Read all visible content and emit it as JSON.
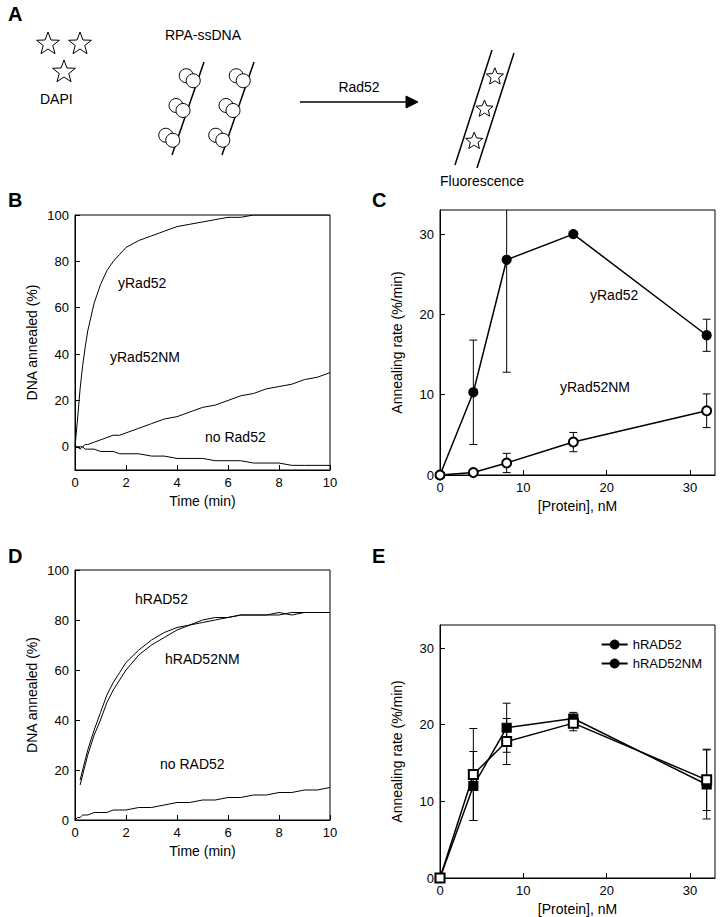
{
  "diagram": {
    "title": "A",
    "labels": {
      "dye": "DAPI",
      "substrate": "RPA-ssDNA",
      "protein": "Rad52",
      "product": "Fluorescence"
    }
  },
  "chart_data": [
    {
      "type": "line",
      "title": "B",
      "x_label": "Time (min)",
      "y_label": "DNA annealed (%)",
      "x": [
        0,
        0.1,
        0.2,
        0.3,
        0.4,
        0.5,
        0.75,
        1,
        1.25,
        1.5,
        1.75,
        2,
        2.5,
        3,
        3.5,
        4,
        4.5,
        5,
        5.5,
        6,
        6.5,
        7,
        7.5,
        8,
        8.5,
        9,
        9.5,
        10
      ],
      "series": [
        {
          "name": "yRad52",
          "color": "#000000",
          "marker": "none",
          "values": [
            0,
            12,
            25,
            35,
            43,
            50,
            62,
            70,
            76,
            80,
            83,
            86,
            89,
            91,
            93,
            95,
            96,
            97,
            98,
            99,
            99,
            100,
            100,
            100,
            100,
            100,
            100,
            100
          ]
        },
        {
          "name": "yRad52NM",
          "color": "#000000",
          "marker": "none",
          "values": [
            0,
            0,
            0,
            0,
            1,
            1,
            2,
            3,
            4,
            5,
            5,
            6,
            8,
            10,
            12,
            13,
            15,
            17,
            18,
            20,
            22,
            23,
            25,
            26,
            27,
            29,
            30,
            32
          ]
        },
        {
          "name": "no Rad52",
          "color": "#000000",
          "marker": "none",
          "values": [
            0,
            0,
            -1,
            0,
            -1,
            -1,
            -1,
            -2,
            -2,
            -2,
            -3,
            -3,
            -3,
            -4,
            -4,
            -5,
            -5,
            -5,
            -6,
            -6,
            -6,
            -7,
            -7,
            -7,
            -8,
            -8,
            -8,
            -8
          ]
        }
      ],
      "xlim": [
        0,
        10
      ],
      "xticks": [
        0,
        2,
        4,
        6,
        8,
        10
      ],
      "ylim": [
        -10,
        100
      ],
      "yticks": [
        0,
        20,
        40,
        60,
        80,
        100
      ],
      "grid": false
    },
    {
      "type": "line",
      "title": "C",
      "x_label": "[Protein], nM",
      "y_label": "Annealing rate (%/min)",
      "x": [
        0,
        4,
        8,
        16,
        32
      ],
      "series": [
        {
          "name": "yRad52",
          "color": "#000000",
          "marker": "circle",
          "values": [
            0,
            10.3,
            26.8,
            30,
            17.4
          ],
          "errors": [
            null,
            6.5,
            14,
            0.3,
            2
          ]
        },
        {
          "name": "yRad52NM",
          "color": "#000000",
          "marker": "circle-open",
          "values": [
            0,
            0.3,
            1.5,
            4.1,
            8
          ],
          "errors": [
            null,
            0.3,
            1.2,
            1.2,
            2.1
          ]
        }
      ],
      "xlim": [
        0,
        33
      ],
      "xticks": [
        0,
        10,
        20,
        30
      ],
      "ylim": [
        0,
        33
      ],
      "yticks": [
        0,
        10,
        20,
        30
      ],
      "grid": false
    },
    {
      "type": "line",
      "title": "D",
      "x_label": "Time (min)",
      "y_label": "DNA annealed (%)",
      "x": [
        0,
        0.1,
        0.2,
        0.3,
        0.4,
        0.5,
        0.75,
        1,
        1.25,
        1.5,
        1.75,
        2,
        2.5,
        3,
        3.5,
        4,
        4.5,
        5,
        5.5,
        6,
        6.5,
        7,
        7.5,
        8,
        8.5,
        9,
        9.5,
        10
      ],
      "series": [
        {
          "name": "hRAD52",
          "color": "#000000",
          "marker": "none",
          "values": [
            null,
            null,
            16,
            20,
            24,
            28,
            36,
            43,
            50,
            55,
            59,
            63,
            68,
            72,
            75,
            77,
            78,
            80,
            81,
            81,
            82,
            82,
            82,
            83,
            82,
            83,
            83,
            83
          ]
        },
        {
          "name": "hRAD52NM",
          "color": "#000000",
          "marker": "none",
          "values": [
            null,
            null,
            14,
            18,
            22,
            26,
            34,
            40,
            47,
            52,
            56,
            60,
            66,
            70,
            73,
            76,
            78,
            79,
            80,
            81,
            82,
            82,
            82,
            82,
            83,
            83,
            83,
            83
          ]
        },
        {
          "name": "no RAD52",
          "color": "#000000",
          "marker": "none",
          "values": [
            0,
            1,
            1,
            2,
            2,
            2,
            3,
            3,
            3,
            4,
            4,
            4,
            5,
            5,
            6,
            7,
            7,
            8,
            8,
            9,
            9,
            10,
            10,
            11,
            11,
            12,
            12,
            13
          ]
        }
      ],
      "xlim": [
        0,
        10
      ],
      "xticks": [
        0,
        2,
        4,
        6,
        8,
        10
      ],
      "ylim": [
        0,
        100
      ],
      "yticks": [
        0,
        20,
        40,
        60,
        80,
        100
      ],
      "grid": false
    },
    {
      "type": "line",
      "title": "E",
      "x_label": "[Protein], nM",
      "y_label": "Annealing rate (%/min)",
      "x": [
        0,
        4,
        8,
        16,
        32
      ],
      "series": [
        {
          "name": "hRAD52",
          "color": "#000000",
          "marker": "square",
          "values": [
            0,
            12,
            19.6,
            20.8,
            12.2
          ],
          "errors": [
            null,
            4.5,
            3.2,
            0.8,
            4.5
          ]
        },
        {
          "name": "hRAD52NM",
          "color": "#000000",
          "marker": "square-open",
          "values": [
            0,
            13.5,
            17.8,
            20.2,
            12.8
          ],
          "errors": [
            null,
            6,
            3,
            1,
            4
          ]
        }
      ],
      "xlim": [
        0,
        33
      ],
      "xticks": [
        0,
        10,
        20,
        30
      ],
      "ylim": [
        0,
        33
      ],
      "yticks": [
        0,
        10,
        20,
        30
      ],
      "grid": false,
      "legend": "upper right"
    }
  ]
}
